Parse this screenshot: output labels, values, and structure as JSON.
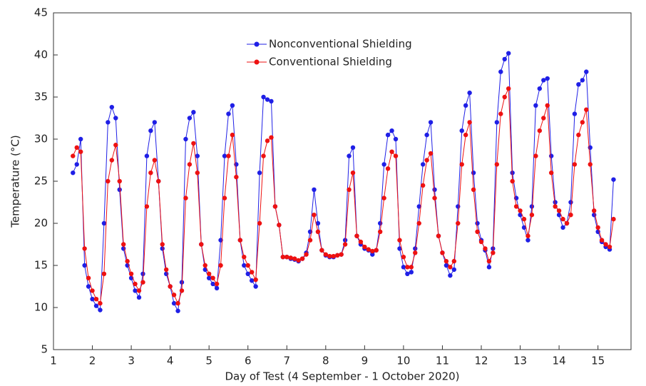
{
  "chart_data": {
    "type": "line",
    "xlabel": "Day of Test (4 September - 1 October 2020)",
    "ylabel": "Temperature (°C)",
    "x": [
      1.5,
      1.6,
      1.7,
      1.8,
      1.9,
      2.0,
      2.1,
      2.2,
      2.3,
      2.4,
      2.5,
      2.6,
      2.7,
      2.8,
      2.9,
      3.0,
      3.1,
      3.2,
      3.3,
      3.4,
      3.5,
      3.6,
      3.7,
      3.8,
      3.9,
      4.0,
      4.1,
      4.2,
      4.3,
      4.4,
      4.5,
      4.6,
      4.7,
      4.8,
      4.9,
      5.0,
      5.1,
      5.2,
      5.3,
      5.4,
      5.5,
      5.6,
      5.7,
      5.8,
      5.9,
      6.0,
      6.1,
      6.2,
      6.3,
      6.4,
      6.5,
      6.6,
      6.7,
      6.8,
      6.9,
      7.0,
      7.1,
      7.2,
      7.3,
      7.4,
      7.5,
      7.6,
      7.7,
      7.8,
      7.9,
      8.0,
      8.1,
      8.2,
      8.3,
      8.4,
      8.5,
      8.6,
      8.7,
      8.8,
      8.9,
      9.0,
      9.1,
      9.2,
      9.3,
      9.4,
      9.5,
      9.6,
      9.7,
      9.8,
      9.9,
      10.0,
      10.1,
      10.2,
      10.3,
      10.4,
      10.5,
      10.6,
      10.7,
      10.8,
      10.9,
      11.0,
      11.1,
      11.2,
      11.3,
      11.4,
      11.5,
      11.6,
      11.7,
      11.8,
      11.9,
      12.0,
      12.1,
      12.2,
      12.3,
      12.4,
      12.5,
      12.6,
      12.7,
      12.8,
      12.9,
      13.0,
      13.1,
      13.2,
      13.3,
      13.4,
      13.5,
      13.6,
      13.7,
      13.8,
      13.9,
      14.0,
      14.1,
      14.2,
      14.3,
      14.4,
      14.5,
      14.6,
      14.7,
      14.8,
      14.9,
      15.0,
      15.1,
      15.2,
      15.3,
      15.4
    ],
    "series": [
      {
        "name": "Nonconventional Shielding",
        "color": "#1f1fe6",
        "values": [
          26,
          27,
          30,
          15,
          12.5,
          11,
          10.2,
          9.7,
          20,
          32,
          33.8,
          32.5,
          24,
          17,
          15,
          13.5,
          12,
          11.2,
          14,
          28,
          31,
          32,
          25,
          17,
          14,
          12.5,
          10.5,
          9.6,
          13,
          30,
          32.5,
          33.2,
          28,
          17.5,
          14.5,
          13.5,
          12.8,
          12.3,
          18,
          28,
          33,
          34,
          27,
          18,
          15,
          14,
          13.2,
          12.5,
          26,
          35,
          34.7,
          34.5,
          22,
          19.8,
          16,
          16,
          15.8,
          15.7,
          15.5,
          15.8,
          16.5,
          19,
          24,
          20,
          16.8,
          16.2,
          16,
          16,
          16.2,
          16.3,
          18,
          28,
          29,
          18.5,
          17.5,
          17,
          16.8,
          16.3,
          16.8,
          20,
          27,
          30.5,
          31,
          30,
          17,
          14.8,
          14,
          14.2,
          17,
          22,
          27,
          30.5,
          32,
          24,
          18.5,
          16.5,
          15,
          13.8,
          14.5,
          22,
          31,
          34,
          35.5,
          26,
          20,
          18,
          16.8,
          14.8,
          17,
          32,
          38,
          39.5,
          40.2,
          26,
          23,
          21,
          19.5,
          18,
          22,
          34,
          36,
          37,
          37.2,
          28,
          22.5,
          21,
          19.5,
          20,
          22.5,
          33,
          36.5,
          37,
          38,
          29,
          21,
          19,
          17.8,
          17.2,
          16.9,
          25.2
        ]
      },
      {
        "name": "Conventional Shielding",
        "color": "#ee1111",
        "values": [
          28,
          29,
          28.5,
          17,
          13.5,
          12,
          11,
          10.5,
          14,
          25,
          27.5,
          29.3,
          25,
          17.5,
          15.5,
          14,
          12.8,
          12,
          13,
          22,
          26,
          27.5,
          25,
          17.5,
          14.5,
          12.5,
          11.5,
          10.5,
          12,
          23,
          27,
          29.5,
          26,
          17.5,
          15,
          14,
          13.5,
          12.8,
          15,
          23,
          28,
          30.5,
          25.5,
          18,
          16,
          15,
          14.2,
          13.3,
          20,
          28,
          29.8,
          30.2,
          22,
          19.8,
          16,
          16,
          15.9,
          15.8,
          15.6,
          15.8,
          16.3,
          18,
          21,
          19,
          16.8,
          16.3,
          16.1,
          16.1,
          16.2,
          16.3,
          17.5,
          24,
          26,
          18.5,
          17.8,
          17.2,
          16.9,
          16.7,
          16.8,
          19,
          23,
          26.5,
          28.5,
          28,
          18,
          16,
          14.8,
          14.8,
          16.5,
          20,
          24.5,
          27.5,
          28.3,
          23,
          18.5,
          16.5,
          15.5,
          14.8,
          15.5,
          20,
          27,
          30.5,
          32,
          24,
          19,
          17.8,
          17,
          15.5,
          16.5,
          27,
          33,
          35,
          36,
          25,
          22,
          21.5,
          20.5,
          18.5,
          21,
          28,
          31,
          32.5,
          34,
          26,
          22,
          21.5,
          20.5,
          20,
          21,
          27,
          30.5,
          32,
          33.5,
          27,
          21.5,
          19.5,
          18,
          17.5,
          17.2,
          20.5
        ]
      }
    ],
    "xlim": [
      1,
      15.85
    ],
    "xticks": [
      1,
      2,
      3,
      4,
      5,
      6,
      7,
      8,
      9,
      10,
      11,
      12,
      13,
      14,
      15
    ],
    "ylim": [
      5,
      45
    ],
    "yticks": [
      5,
      10,
      15,
      20,
      25,
      30,
      35,
      40,
      45
    ],
    "legend": "upper center",
    "markers": true
  }
}
